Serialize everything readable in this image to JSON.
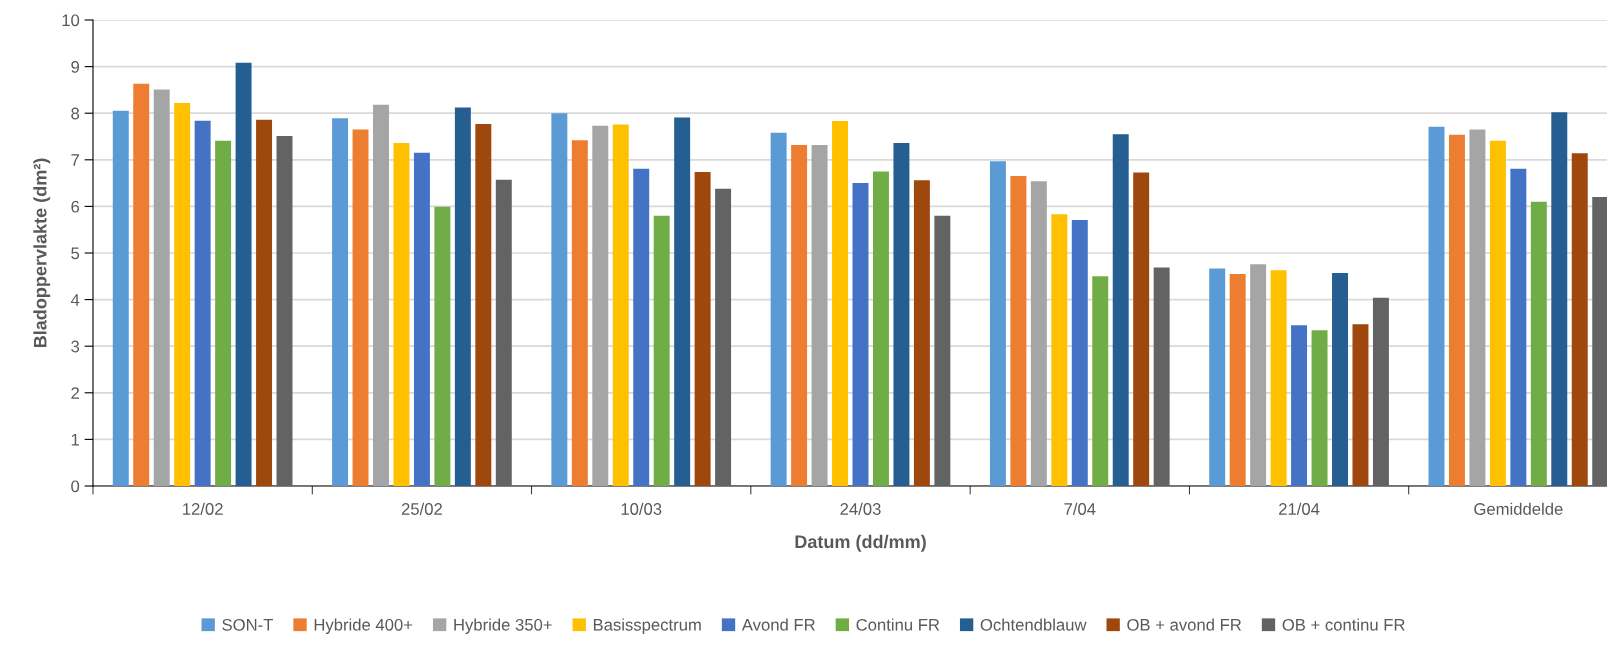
{
  "chart_data": {
    "type": "bar",
    "xlabel": "Datum (dd/mm)",
    "ylabel": "Bladoppervlakte (dm²)",
    "categories": [
      "12/02",
      "25/02",
      "10/03",
      "24/03",
      "7/04",
      "21/04",
      "Gemiddelde"
    ],
    "ylim": [
      0,
      10
    ],
    "yticks": [
      0,
      1,
      2,
      3,
      4,
      5,
      6,
      7,
      8,
      9,
      10
    ],
    "grid": "y",
    "legend": "bottom",
    "series": [
      {
        "name": "SON-T",
        "color": "#5b9bd5",
        "values": [
          8.05,
          7.89,
          8.0,
          7.58,
          6.97,
          4.67,
          7.71
        ]
      },
      {
        "name": "Hybride 400+",
        "color": "#ed7d31",
        "values": [
          8.63,
          7.65,
          7.42,
          7.32,
          6.65,
          4.55,
          7.54
        ]
      },
      {
        "name": "Hybride 350+",
        "color": "#a5a5a5",
        "values": [
          8.51,
          8.18,
          7.73,
          7.32,
          6.54,
          4.76,
          7.65
        ]
      },
      {
        "name": "Basisspectrum",
        "color": "#ffc000",
        "values": [
          8.22,
          7.36,
          7.76,
          7.83,
          5.83,
          4.63,
          7.41
        ]
      },
      {
        "name": "Avond FR",
        "color": "#4472c4",
        "values": [
          7.84,
          7.15,
          6.81,
          6.5,
          5.71,
          3.45,
          6.81
        ]
      },
      {
        "name": "Continu FR",
        "color": "#70ad47",
        "values": [
          7.41,
          5.99,
          5.8,
          6.75,
          4.5,
          3.34,
          6.1
        ]
      },
      {
        "name": "Ochtendblauw",
        "color": "#255e91",
        "values": [
          9.08,
          8.12,
          7.91,
          7.36,
          7.55,
          4.57,
          8.02
        ]
      },
      {
        "name": "OB + avond FR",
        "color": "#9e480e",
        "values": [
          7.86,
          7.77,
          6.74,
          6.56,
          6.73,
          3.47,
          7.14
        ]
      },
      {
        "name": "OB + continu FR",
        "color": "#636363",
        "values": [
          7.51,
          6.57,
          6.38,
          5.8,
          4.69,
          4.04,
          6.2
        ]
      }
    ]
  }
}
